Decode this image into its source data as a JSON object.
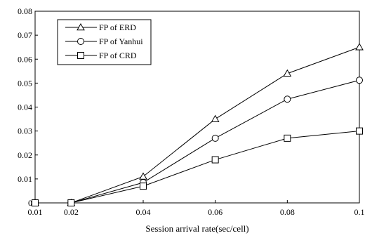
{
  "chart_data": {
    "type": "line",
    "title": "",
    "xlabel": "Session arrival rate(sec/cell)",
    "ylabel": "",
    "x": [
      0.01,
      0.02,
      0.04,
      0.06,
      0.08,
      0.1
    ],
    "x_tick_labels": [
      "0.01",
      "0.02",
      "0.04",
      "0.06",
      "0.08",
      "0.1"
    ],
    "y_tick_labels": [
      "0",
      "0.01",
      "0.02",
      "0.03",
      "0.04",
      "0.05",
      "0.06",
      "0.07",
      "0.08"
    ],
    "ylim": [
      0,
      0.08
    ],
    "grid": false,
    "legend_position": "top-left",
    "series": [
      {
        "name": "FP of ERD",
        "marker": "triangle",
        "values": [
          0,
          0,
          0.011,
          0.035,
          0.054,
          0.065
        ]
      },
      {
        "name": "FP of Yanhui",
        "marker": "circle",
        "values": [
          0,
          0,
          0.0085,
          0.027,
          0.0433,
          0.0512
        ]
      },
      {
        "name": "FP of CRD",
        "marker": "square",
        "values": [
          0,
          0,
          0.007,
          0.018,
          0.027,
          0.03
        ]
      }
    ],
    "colors": {
      "line": "#000000",
      "background": "#ffffff"
    }
  }
}
